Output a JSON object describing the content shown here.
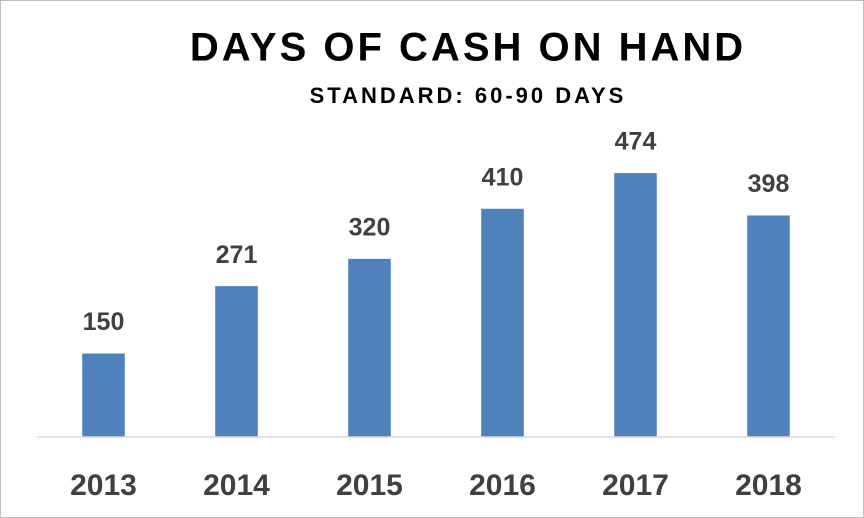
{
  "chart_data": {
    "type": "bar",
    "title": "DAYS OF CASH ON HAND",
    "subtitle": "STANDARD: 60-90 DAYS",
    "categories": [
      "2013",
      "2014",
      "2015",
      "2016",
      "2017",
      "2018"
    ],
    "values": [
      150,
      271,
      320,
      410,
      474,
      398
    ],
    "color": "#4f81bd",
    "ylim": [
      0,
      600
    ]
  }
}
